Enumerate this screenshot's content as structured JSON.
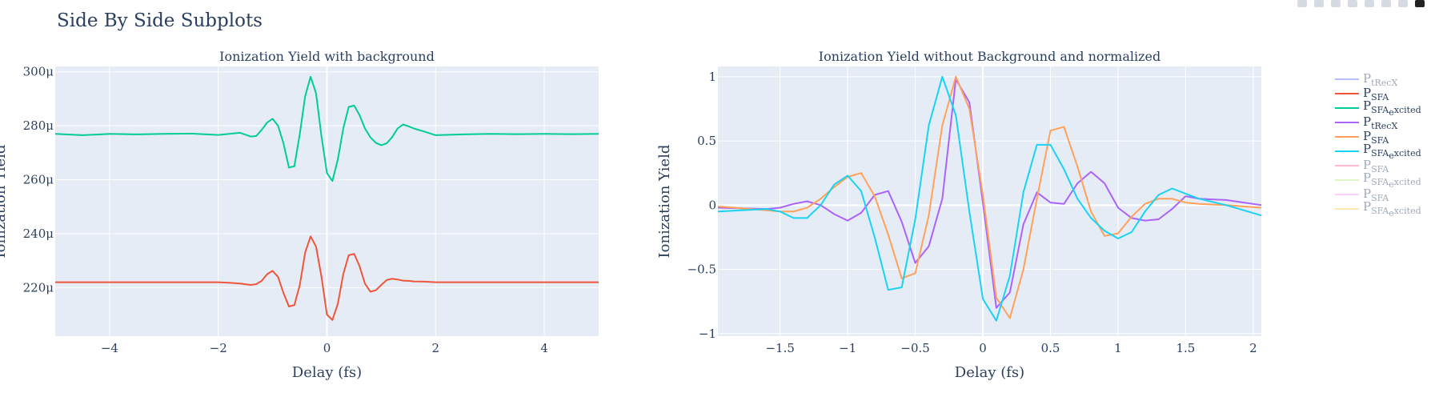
{
  "figure_title": "Side By Side Subplots",
  "modebar": [
    "camera-icon",
    "zoom-icon",
    "pan-icon",
    "zoom-in-icon",
    "zoom-out-icon",
    "autoscale-icon",
    "reset-axes-icon",
    "plotly-logo-icon"
  ],
  "colors": {
    "P_tRecX": "#636efa",
    "P_SFA": "#ef553b",
    "P_SFA_excited": "#00cc96",
    "P_tRecX_b": "#ab63fa",
    "P_SFA_b": "#ffa15a",
    "P_SFA_excited_b": "#19d3f3",
    "pink": "#ff6692",
    "lime": "#b6e880",
    "magenta": "#ff97ff",
    "yellow": "#fecb52"
  },
  "legend": [
    {
      "main": "P",
      "sub": "tRecX",
      "color": "#636efa",
      "muted": true
    },
    {
      "main": "P",
      "sub": "SFA",
      "color": "#ef553b",
      "muted": false
    },
    {
      "main": "P",
      "sub": "SFA",
      "sub2": "e",
      "sub3": "xcited",
      "color": "#00cc96",
      "muted": false
    },
    {
      "main": "P",
      "sub": "tRecX",
      "color": "#ab63fa",
      "muted": false
    },
    {
      "main": "P",
      "sub": "SFA",
      "color": "#ffa15a",
      "muted": false
    },
    {
      "main": "P",
      "sub": "SFA",
      "sub2": "e",
      "sub3": "xcited",
      "color": "#19d3f3",
      "muted": false
    },
    {
      "main": "P",
      "sub": "SFA",
      "color": "#ff6692",
      "muted": true
    },
    {
      "main": "P",
      "sub": "SFA",
      "sub2": "e",
      "sub3": "xcited",
      "color": "#b6e880",
      "muted": true
    },
    {
      "main": "P",
      "sub": "SFA",
      "color": "#ff97ff",
      "muted": true
    },
    {
      "main": "P",
      "sub": "SFA",
      "sub2": "e",
      "sub3": "xcited",
      "color": "#fecb52",
      "muted": true
    }
  ],
  "chart_data": [
    {
      "type": "line",
      "title": "Ionization Yield with background",
      "xlabel": "Delay (fs)",
      "ylabel": "Ionization Yield",
      "xlim": [
        -5,
        5
      ],
      "ylim": [
        0.000202,
        0.000302
      ],
      "x_ticks": [
        -4,
        -2,
        0,
        2,
        4
      ],
      "x_tick_labels": [
        "−4",
        "−2",
        "0",
        "2",
        "4"
      ],
      "y_ticks": [
        0.00022,
        0.00024,
        0.00026,
        0.00028,
        0.0003
      ],
      "y_tick_labels": [
        "220μ",
        "240μ",
        "260μ",
        "280μ",
        "300μ"
      ],
      "grid": true,
      "series": [
        {
          "color": "#00cc96",
          "x": [
            -5,
            -4.5,
            -4,
            -3.5,
            -3,
            -2.5,
            -2,
            -1.8,
            -1.6,
            -1.4,
            -1.3,
            -1.2,
            -1.1,
            -1,
            -0.9,
            -0.8,
            -0.7,
            -0.6,
            -0.5,
            -0.4,
            -0.3,
            -0.2,
            -0.1,
            0,
            0.1,
            0.2,
            0.3,
            0.4,
            0.5,
            0.6,
            0.7,
            0.8,
            0.9,
            1.0,
            1.1,
            1.2,
            1.3,
            1.4,
            1.5,
            1.6,
            1.8,
            2,
            2.5,
            3,
            3.5,
            4,
            4.5,
            5
          ],
          "y": [
            0.000277,
            0.0002765,
            0.000277,
            0.0002768,
            0.000277,
            0.0002771,
            0.0002766,
            0.000277,
            0.0002774,
            0.000276,
            0.0002762,
            0.0002785,
            0.0002812,
            0.0002826,
            0.00028,
            0.0002735,
            0.0002645,
            0.000265,
            0.000277,
            0.000291,
            0.0002982,
            0.000292,
            0.000276,
            0.0002625,
            0.0002595,
            0.0002675,
            0.000279,
            0.000287,
            0.0002875,
            0.000284,
            0.000279,
            0.0002757,
            0.0002737,
            0.0002728,
            0.0002735,
            0.0002758,
            0.000279,
            0.0002805,
            0.0002798,
            0.000279,
            0.0002778,
            0.0002765,
            0.0002768,
            0.000277,
            0.0002769,
            0.000277,
            0.0002769,
            0.000277
          ]
        },
        {
          "color": "#ef553b",
          "x": [
            -5,
            -4.5,
            -4,
            -3.5,
            -3,
            -2.5,
            -2,
            -1.8,
            -1.6,
            -1.4,
            -1.3,
            -1.2,
            -1.1,
            -1,
            -0.9,
            -0.8,
            -0.7,
            -0.6,
            -0.5,
            -0.4,
            -0.3,
            -0.2,
            -0.1,
            0,
            0.1,
            0.2,
            0.3,
            0.4,
            0.5,
            0.6,
            0.7,
            0.8,
            0.9,
            1.0,
            1.1,
            1.2,
            1.3,
            1.4,
            1.5,
            1.6,
            1.8,
            2,
            2.5,
            3,
            3.5,
            4,
            4.5,
            5
          ],
          "y": [
            0.000222,
            0.000222,
            0.000222,
            0.000222,
            0.000222,
            0.000222,
            0.000222,
            0.0002218,
            0.0002215,
            0.000221,
            0.0002213,
            0.0002225,
            0.000225,
            0.0002262,
            0.000224,
            0.000218,
            0.000213,
            0.0002135,
            0.000221,
            0.000233,
            0.000239,
            0.0002352,
            0.000224,
            0.00021,
            0.000208,
            0.000214,
            0.000225,
            0.000232,
            0.0002325,
            0.000228,
            0.0002215,
            0.0002185,
            0.000219,
            0.000221,
            0.0002228,
            0.0002233,
            0.000223,
            0.0002226,
            0.0002225,
            0.0002223,
            0.0002222,
            0.000222,
            0.000222,
            0.000222,
            0.000222,
            0.000222,
            0.000222,
            0.000222
          ]
        }
      ]
    },
    {
      "type": "line",
      "title": "Ionization Yield without Background and normalized",
      "xlabel": "Delay (fs)",
      "ylabel": "Ionization Yield",
      "xlim": [
        -1.96,
        2.06
      ],
      "ylim": [
        -1.02,
        1.08
      ],
      "x_ticks": [
        -1.5,
        -1,
        -0.5,
        0,
        0.5,
        1,
        1.5,
        2
      ],
      "x_tick_labels": [
        "−1.5",
        "−1",
        "−0.5",
        "0",
        "0.5",
        "1",
        "1.5",
        "2"
      ],
      "y_ticks": [
        -1,
        -0.5,
        0,
        0.5,
        1
      ],
      "y_tick_labels": [
        "−1",
        "−0.5",
        "0",
        "0.5",
        "1"
      ],
      "grid": true,
      "series": [
        {
          "color": "#ab63fa",
          "x": [
            -1.96,
            -1.6,
            -1.5,
            -1.4,
            -1.3,
            -1.2,
            -1.1,
            -1.0,
            -0.9,
            -0.8,
            -0.7,
            -0.6,
            -0.5,
            -0.4,
            -0.3,
            -0.2,
            -0.1,
            0,
            0.1,
            0.2,
            0.3,
            0.4,
            0.5,
            0.6,
            0.7,
            0.8,
            0.9,
            1.0,
            1.1,
            1.2,
            1.3,
            1.4,
            1.5,
            1.6,
            1.8,
            2.06
          ],
          "y": [
            -0.02,
            -0.03,
            -0.02,
            0.01,
            0.03,
            0.0,
            -0.07,
            -0.12,
            -0.06,
            0.08,
            0.11,
            -0.13,
            -0.45,
            -0.32,
            0.05,
            0.98,
            0.8,
            0.02,
            -0.8,
            -0.68,
            -0.15,
            0.1,
            0.02,
            0.01,
            0.17,
            0.26,
            0.17,
            -0.02,
            -0.1,
            -0.12,
            -0.11,
            -0.03,
            0.07,
            0.05,
            0.04,
            0.0
          ]
        },
        {
          "color": "#ffa15a",
          "x": [
            -1.96,
            -1.6,
            -1.5,
            -1.4,
            -1.3,
            -1.2,
            -1.1,
            -1.0,
            -0.9,
            -0.8,
            -0.7,
            -0.6,
            -0.5,
            -0.4,
            -0.3,
            -0.2,
            -0.1,
            0,
            0.1,
            0.2,
            0.3,
            0.4,
            0.5,
            0.6,
            0.7,
            0.8,
            0.9,
            1.0,
            1.1,
            1.2,
            1.3,
            1.4,
            1.5,
            1.6,
            1.8,
            2.06
          ],
          "y": [
            -0.01,
            -0.04,
            -0.05,
            -0.05,
            -0.02,
            0.05,
            0.14,
            0.22,
            0.25,
            0.07,
            -0.23,
            -0.57,
            -0.53,
            -0.08,
            0.62,
            1.0,
            0.75,
            0.08,
            -0.72,
            -0.88,
            -0.5,
            0.05,
            0.58,
            0.61,
            0.3,
            -0.05,
            -0.24,
            -0.22,
            -0.09,
            0.01,
            0.05,
            0.05,
            0.02,
            0.01,
            0.0,
            -0.02
          ]
        },
        {
          "color": "#19d3f3",
          "x": [
            -1.96,
            -1.6,
            -1.5,
            -1.4,
            -1.3,
            -1.2,
            -1.1,
            -1.0,
            -0.9,
            -0.8,
            -0.7,
            -0.6,
            -0.5,
            -0.4,
            -0.3,
            -0.2,
            -0.1,
            0,
            0.1,
            0.2,
            0.3,
            0.4,
            0.5,
            0.6,
            0.7,
            0.8,
            0.9,
            1.0,
            1.1,
            1.2,
            1.3,
            1.4,
            1.5,
            1.6,
            1.8,
            2.06
          ],
          "y": [
            -0.05,
            -0.03,
            -0.05,
            -0.1,
            -0.1,
            0.0,
            0.16,
            0.23,
            0.11,
            -0.25,
            -0.66,
            -0.64,
            -0.11,
            0.62,
            1.0,
            0.7,
            -0.05,
            -0.73,
            -0.9,
            -0.55,
            0.1,
            0.47,
            0.47,
            0.28,
            0.05,
            -0.1,
            -0.2,
            -0.26,
            -0.21,
            -0.05,
            0.08,
            0.13,
            0.09,
            0.05,
            0.0,
            -0.08
          ]
        }
      ]
    }
  ]
}
